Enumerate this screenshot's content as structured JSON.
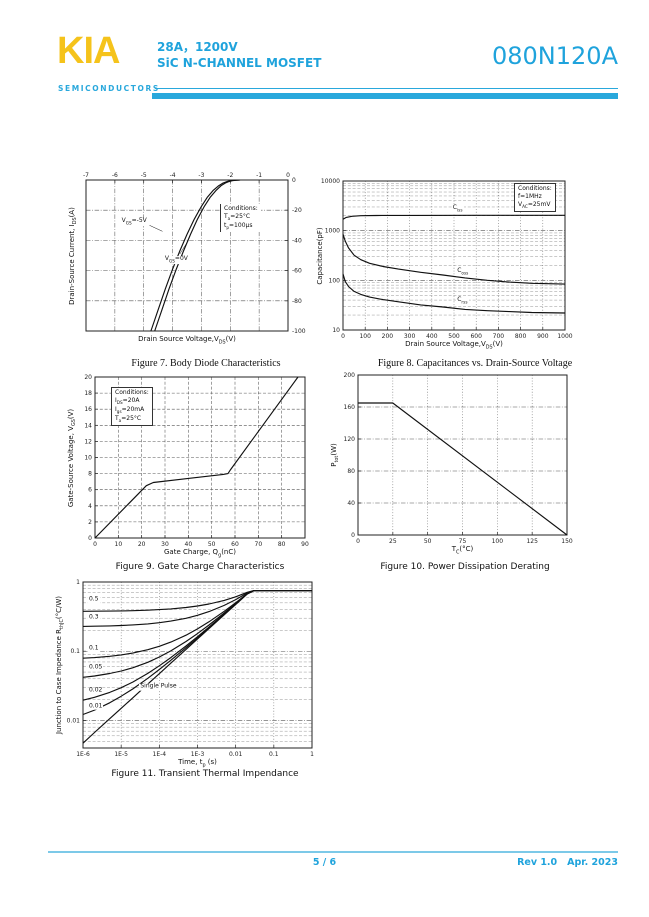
{
  "header": {
    "logo_text": "KIA",
    "logo_subtext": "SEMICONDUCTORS",
    "rating": "28A，1200V",
    "device_type": "SiC N-CHANNEL MOSFET",
    "part_number": "080N120A",
    "accent_color": "#1fa3dc",
    "logo_color": "#f5c31b"
  },
  "footer": {
    "page_indicator": "5 / 6",
    "revision": "Rev 1.0",
    "date": "Apr. 2023"
  },
  "chart_data": [
    {
      "type": "line",
      "title": "Figure 7. Body Diode Characteristics",
      "xlabel": "Drain Source Voltage,V_{DS}(V)",
      "ylabel": "Drain-Source Current, I_{DS}(A)",
      "xscale": "linear",
      "yscale": "linear",
      "xlim": [
        -7,
        0
      ],
      "ylim": [
        -100,
        0
      ],
      "xticks": {
        "values": [
          -7,
          -6,
          -5,
          -4,
          -3,
          -2,
          -1,
          0
        ],
        "labels": [
          "-7",
          "-6",
          "-5",
          "-4",
          "-3",
          "-2",
          "-1",
          "0"
        ]
      },
      "yticks": {
        "values": [
          0,
          -20,
          -40,
          -60,
          -80,
          -100
        ],
        "labels": [
          "0",
          "-20",
          "-40",
          "-60",
          "-80",
          "-100"
        ]
      },
      "series": [
        {
          "name": "V_GS=-5V",
          "points": [
            [
              -4.75,
              -100
            ],
            [
              -4.5,
              -86
            ],
            [
              -4.25,
              -72
            ],
            [
              -4.0,
              -59
            ],
            [
              -3.75,
              -47
            ],
            [
              -3.5,
              -36
            ],
            [
              -3.25,
              -26
            ],
            [
              -3.0,
              -17.5
            ],
            [
              -2.8,
              -11.5
            ],
            [
              -2.6,
              -7
            ],
            [
              -2.4,
              -3.8
            ],
            [
              -2.25,
              -2
            ],
            [
              -2.1,
              -0.9
            ],
            [
              -1.95,
              -0.35
            ],
            [
              -1.8,
              -0.12
            ],
            [
              -1.7,
              -0.05
            ]
          ]
        },
        {
          "name": "V_GS=0V",
          "points": [
            [
              -4.62,
              -100
            ],
            [
              -4.37,
              -86
            ],
            [
              -4.12,
              -72
            ],
            [
              -3.87,
              -59
            ],
            [
              -3.62,
              -47
            ],
            [
              -3.38,
              -36
            ],
            [
              -3.14,
              -26
            ],
            [
              -2.9,
              -17.5
            ],
            [
              -2.7,
              -11.5
            ],
            [
              -2.5,
              -7
            ],
            [
              -2.32,
              -3.8
            ],
            [
              -2.17,
              -2
            ],
            [
              -2.03,
              -0.9
            ],
            [
              -1.9,
              -0.35
            ],
            [
              -1.76,
              -0.12
            ],
            [
              -1.66,
              -0.05
            ]
          ]
        }
      ],
      "annotations": [
        {
          "text": "V_{GS}=-5V",
          "x": -5.8,
          "y": -28,
          "anchor": "start"
        },
        {
          "text": "V_{GS}=0V",
          "x": -4.3,
          "y": -53,
          "anchor": "start"
        }
      ],
      "leaders": [
        [
          -4.8,
          -30,
          -4.35,
          -34
        ],
        [
          -3.75,
          -49,
          -3.45,
          -40
        ]
      ],
      "conditions": [
        "Conditions:",
        "T_{a}=25°C",
        "t_{p}=100μs"
      ]
    },
    {
      "type": "line",
      "title": "Figure 8. Capacitances vs. Drain-Source Voltage",
      "xlabel": "Drain Source Voltage,V_{DS}(V)",
      "ylabel": "Capacitance(pF)",
      "xscale": "linear",
      "yscale": "log",
      "xlim": [
        0,
        1000
      ],
      "ylim": [
        10,
        10000
      ],
      "xticks": {
        "values": [
          0,
          100,
          200,
          300,
          400,
          500,
          600,
          700,
          800,
          900,
          1000
        ],
        "labels": [
          "0",
          "100",
          "200",
          "300",
          "400",
          "500",
          "600",
          "700",
          "800",
          "900",
          "1000"
        ]
      },
      "yticks": {
        "values": [
          10,
          100,
          1000,
          10000
        ],
        "labels": [
          "10",
          "100",
          "1000",
          "10000"
        ]
      },
      "series": [
        {
          "name": "Ciss",
          "points": [
            [
              0,
              1700
            ],
            [
              15,
              1850
            ],
            [
              40,
              1950
            ],
            [
              80,
              2000
            ],
            [
              150,
              2020
            ],
            [
              300,
              2030
            ],
            [
              600,
              2040
            ],
            [
              1000,
              2040
            ]
          ]
        },
        {
          "name": "Coss",
          "points": [
            [
              0,
              850
            ],
            [
              10,
              620
            ],
            [
              25,
              450
            ],
            [
              50,
              320
            ],
            [
              80,
              260
            ],
            [
              120,
              220
            ],
            [
              180,
              190
            ],
            [
              250,
              168
            ],
            [
              350,
              145
            ],
            [
              450,
              128
            ],
            [
              550,
              112
            ],
            [
              650,
              100
            ],
            [
              750,
              92
            ],
            [
              850,
              87
            ],
            [
              1000,
              84
            ]
          ]
        },
        {
          "name": "Crss",
          "points": [
            [
              0,
              135
            ],
            [
              10,
              95
            ],
            [
              25,
              75
            ],
            [
              50,
              60
            ],
            [
              80,
              52
            ],
            [
              120,
              46
            ],
            [
              180,
              41
            ],
            [
              250,
              37
            ],
            [
              350,
              32
            ],
            [
              450,
              29
            ],
            [
              550,
              26
            ],
            [
              650,
              24.5
            ],
            [
              750,
              23.5
            ],
            [
              850,
              22.5
            ],
            [
              1000,
              22
            ]
          ]
        }
      ],
      "annotations": [
        {
          "text": "C_{iss}",
          "x": 490,
          "y": 2700,
          "anchor": "start"
        },
        {
          "text": "C_{oss}",
          "x": 510,
          "y": 148,
          "anchor": "start"
        },
        {
          "text": "C_{rss}",
          "x": 510,
          "y": 38,
          "anchor": "start"
        }
      ],
      "leaders": [],
      "conditions": [
        "Conditions:",
        "f=1MHz",
        "V_{AC}=25mV"
      ]
    },
    {
      "type": "line",
      "title": "Figure 9. Gate Charge Characteristics",
      "xlabel": "Gate Charge, Q_{g}(nC)",
      "ylabel": "Gate-Source Voltage, V_{GS}(V)",
      "xscale": "linear",
      "yscale": "linear",
      "xlim": [
        0,
        90
      ],
      "ylim": [
        0,
        20
      ],
      "xticks": {
        "values": [
          0,
          10,
          20,
          30,
          40,
          50,
          60,
          70,
          80,
          90
        ],
        "labels": [
          "0",
          "10",
          "20",
          "30",
          "40",
          "50",
          "60",
          "70",
          "80",
          "90"
        ]
      },
      "yticks": {
        "values": [
          0,
          2,
          4,
          6,
          8,
          10,
          12,
          14,
          16,
          18,
          20
        ],
        "labels": [
          "0",
          "2",
          "4",
          "6",
          "8",
          "10",
          "12",
          "14",
          "16",
          "18",
          "20"
        ]
      },
      "series": [
        {
          "name": "VGS vs Qg",
          "points": [
            [
              0,
              0
            ],
            [
              22,
              6.5
            ],
            [
              25,
              6.9
            ],
            [
              40,
              7.4
            ],
            [
              55,
              7.9
            ],
            [
              57,
              8.0
            ],
            [
              58,
              8.45
            ],
            [
              87,
              20
            ]
          ]
        }
      ],
      "annotations": [],
      "leaders": [],
      "conditions": [
        "Conditions:",
        "I_{DS}=20A",
        "I_{gs}=20mA",
        "T_{a}=25°C"
      ]
    },
    {
      "type": "line",
      "title": "Figure 10. Power Dissipation Derating",
      "xlabel": "T_{C}(°C)",
      "ylabel": "P_{tot}(W)",
      "xscale": "linear",
      "yscale": "linear",
      "xlim": [
        0,
        150
      ],
      "ylim": [
        0,
        200
      ],
      "xticks": {
        "values": [
          0,
          25,
          50,
          75,
          100,
          125,
          150
        ],
        "labels": [
          "0",
          "25",
          "50",
          "75",
          "100",
          "125",
          "150"
        ]
      },
      "yticks": {
        "values": [
          0,
          40,
          80,
          120,
          160,
          200
        ],
        "labels": [
          "0",
          "40",
          "80",
          "120",
          "160",
          "200"
        ]
      },
      "series": [
        {
          "name": "Ptot derating",
          "points": [
            [
              0,
              165
            ],
            [
              25,
              165
            ],
            [
              150,
              0
            ]
          ]
        }
      ],
      "annotations": [],
      "leaders": []
    },
    {
      "type": "line",
      "title": "Figure 11. Transient Thermal Impendance",
      "xlabel": "Time, t_{p} (s)",
      "ylabel": "Junction to Case Impedance  R_{thJC}(°C/W)",
      "xscale": "log",
      "yscale": "log",
      "xlim": [
        1e-06,
        1
      ],
      "ylim": [
        0.004,
        1
      ],
      "xticks": {
        "values": [
          1e-06,
          1e-05,
          0.0001,
          0.001,
          0.01,
          0.1,
          1
        ],
        "labels": [
          "1E-6",
          "1E-5",
          "1E-4",
          "1E-3",
          "0.01",
          "0.1",
          "1"
        ]
      },
      "yticks": {
        "values": [
          0.01,
          0.1,
          1
        ],
        "labels": [
          "0.01",
          "0.1",
          "1"
        ]
      },
      "x_values": [
        1e-06,
        2e-06,
        5e-06,
        1e-05,
        2e-05,
        5e-05,
        0.0001,
        0.0002,
        0.0005,
        0.001,
        0.002,
        0.005,
        0.01,
        0.02,
        0.03,
        0.1,
        1
      ],
      "series": [
        {
          "name": "D=0.5",
          "y": [
            0.3774,
            0.3784,
            0.3803,
            0.3825,
            0.3856,
            0.3918,
            0.3987,
            0.4085,
            0.428,
            0.45,
            0.4811,
            0.5427,
            0.6122,
            0.7104,
            0.75,
            0.75,
            0.75
          ]
        },
        {
          "name": "D=0.3",
          "y": [
            0.2283,
            0.2297,
            0.2324,
            0.2355,
            0.2398,
            0.2485,
            0.2582,
            0.272,
            0.2993,
            0.33,
            0.3735,
            0.4598,
            0.557,
            0.6946,
            0.75,
            0.75,
            0.75
          ]
        },
        {
          "name": "D=0.1",
          "y": [
            0.0792,
            0.081,
            0.0845,
            0.0885,
            0.0941,
            0.1052,
            0.1177,
            0.1354,
            0.1705,
            0.21,
            0.2659,
            0.3769,
            0.5019,
            0.6787,
            0.75,
            0.75,
            0.75
          ]
        },
        {
          "name": "D=0.05",
          "y": [
            0.042,
            0.0439,
            0.0476,
            0.0518,
            0.0576,
            0.0693,
            0.0825,
            0.1012,
            0.1383,
            0.18,
            0.239,
            0.3561,
            0.4881,
            0.6748,
            0.75,
            0.75,
            0.75
          ]
        },
        {
          "name": "D=0.02",
          "y": [
            0.0196,
            0.0216,
            0.0254,
            0.0297,
            0.0358,
            0.0478,
            0.0615,
            0.0808,
            0.119,
            0.162,
            0.2229,
            0.3437,
            0.4798,
            0.6724,
            0.75,
            0.75,
            0.75
          ]
        },
        {
          "name": "D=0.01",
          "y": [
            0.0122,
            0.0141,
            0.018,
            0.0224,
            0.0285,
            0.0407,
            0.0544,
            0.0739,
            0.1125,
            0.156,
            0.2175,
            0.3395,
            0.477,
            0.6716,
            0.75,
            0.75,
            0.75
          ]
        },
        {
          "name": "Single Pulse",
          "y": [
            0.0047,
            0.0067,
            0.0106,
            0.015,
            0.0212,
            0.0335,
            0.0474,
            0.0671,
            0.1061,
            0.15,
            0.2121,
            0.3354,
            0.4743,
            0.6708,
            0.75,
            0.75,
            0.75
          ]
        }
      ],
      "annotations": [
        {
          "text": "0.5",
          "x": 1.35e-06,
          "y": 0.55,
          "anchor": "start"
        },
        {
          "text": "0.3",
          "x": 1.35e-06,
          "y": 0.305,
          "anchor": "start"
        },
        {
          "text": "0.1",
          "x": 1.35e-06,
          "y": 0.108,
          "anchor": "start"
        },
        {
          "text": "0.05",
          "x": 1.35e-06,
          "y": 0.058,
          "anchor": "start"
        },
        {
          "text": "0.02",
          "x": 1.35e-06,
          "y": 0.0268,
          "anchor": "start"
        },
        {
          "text": "0.01",
          "x": 1.35e-06,
          "y": 0.0158,
          "anchor": "start"
        },
        {
          "text": "Single Pulse",
          "x": 3e-05,
          "y": 0.03,
          "anchor": "start"
        }
      ],
      "leaders": []
    }
  ]
}
